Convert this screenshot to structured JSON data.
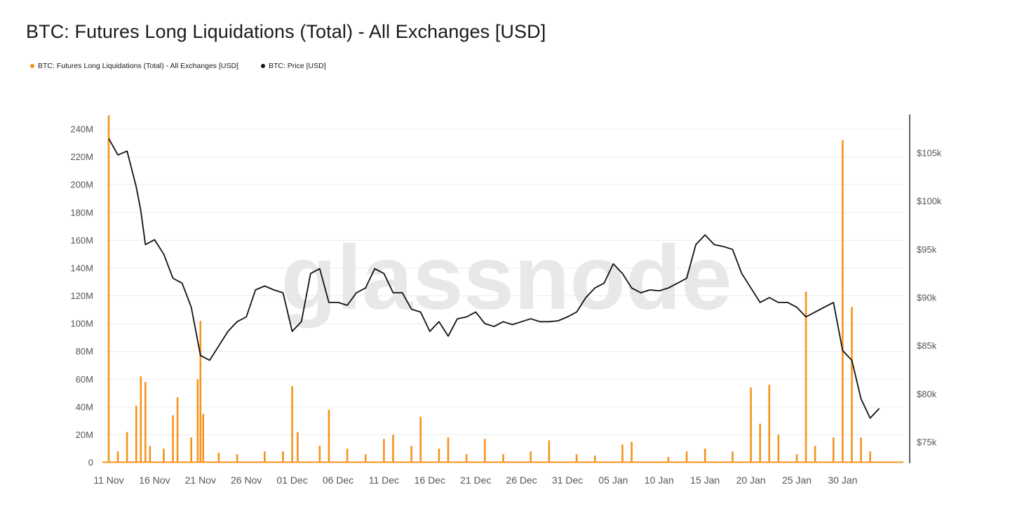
{
  "title": "BTC: Futures Long Liquidations (Total) - All Exchanges [USD]",
  "legend": [
    {
      "label": "BTC: Futures Long Liquidations (Total) - All Exchanges [USD]",
      "color": "#f7931a"
    },
    {
      "label": "BTC: Price [USD]",
      "color": "#111111"
    }
  ],
  "watermark": "glassnode",
  "chart_data": {
    "type": "bar+line",
    "x_ticks": [
      "11 Nov",
      "16 Nov",
      "21 Nov",
      "26 Nov",
      "01 Dec",
      "06 Dec",
      "11 Dec",
      "16 Dec",
      "21 Dec",
      "26 Dec",
      "31 Dec",
      "05 Jan",
      "10 Jan",
      "15 Jan",
      "20 Jan",
      "25 Jan",
      "30 Jan"
    ],
    "x_range": [
      "2025-11-11",
      "2026-02-03"
    ],
    "left_axis": {
      "ticks": [
        "0",
        "20M",
        "40M",
        "60M",
        "80M",
        "100M",
        "120M",
        "140M",
        "160M",
        "180M",
        "200M",
        "220M",
        "240M"
      ],
      "min": 0,
      "max": 240000000
    },
    "right_axis": {
      "ticks": [
        "$75k",
        "$80k",
        "$85k",
        "$90k",
        "$95k",
        "$100k",
        "$105k"
      ],
      "min": 73000,
      "max": 108000
    },
    "liquidations": {
      "name": "BTC: Futures Long Liquidations (Total) - All Exchanges [USD]",
      "color": "#f7931a",
      "points": [
        [
          "2025-11-11",
          250000000
        ],
        [
          "2025-11-12",
          8000000
        ],
        [
          "2025-11-13",
          22000000
        ],
        [
          "2025-11-14",
          41000000
        ],
        [
          "2025-11-14.5",
          62000000
        ],
        [
          "2025-11-15",
          58000000
        ],
        [
          "2025-11-15.5",
          12000000
        ],
        [
          "2025-11-17",
          10000000
        ],
        [
          "2025-11-18",
          34000000
        ],
        [
          "2025-11-18.5",
          47000000
        ],
        [
          "2025-11-20",
          18000000
        ],
        [
          "2025-11-20.7",
          60000000
        ],
        [
          "2025-11-21",
          102000000
        ],
        [
          "2025-11-21.3",
          35000000
        ],
        [
          "2025-11-23",
          7000000
        ],
        [
          "2025-11-25",
          6000000
        ],
        [
          "2025-11-28",
          8000000
        ],
        [
          "2025-11-30",
          8000000
        ],
        [
          "2025-12-01",
          55000000
        ],
        [
          "2025-12-01.6",
          22000000
        ],
        [
          "2025-12-04",
          12000000
        ],
        [
          "2025-12-05",
          38000000
        ],
        [
          "2025-12-07",
          10000000
        ],
        [
          "2025-12-09",
          6000000
        ],
        [
          "2025-12-11",
          17000000
        ],
        [
          "2025-12-12",
          20000000
        ],
        [
          "2025-12-14",
          12000000
        ],
        [
          "2025-12-15",
          33000000
        ],
        [
          "2025-12-17",
          10000000
        ],
        [
          "2025-12-18",
          18000000
        ],
        [
          "2025-12-20",
          6000000
        ],
        [
          "2025-12-22",
          17000000
        ],
        [
          "2025-12-24",
          6000000
        ],
        [
          "2025-12-27",
          8000000
        ],
        [
          "2025-12-29",
          16000000
        ],
        [
          "2026-01-01",
          6000000
        ],
        [
          "2026-01-03",
          5000000
        ],
        [
          "2026-01-06",
          13000000
        ],
        [
          "2026-01-07",
          15000000
        ],
        [
          "2026-01-11",
          4000000
        ],
        [
          "2026-01-13",
          8000000
        ],
        [
          "2026-01-15",
          10000000
        ],
        [
          "2026-01-18",
          8000000
        ],
        [
          "2026-01-20",
          54000000
        ],
        [
          "2026-01-21",
          28000000
        ],
        [
          "2026-01-22",
          56000000
        ],
        [
          "2026-01-23",
          20000000
        ],
        [
          "2026-01-25",
          6000000
        ],
        [
          "2026-01-26",
          123000000
        ],
        [
          "2026-01-27",
          12000000
        ],
        [
          "2026-01-29",
          18000000
        ],
        [
          "2026-01-30",
          232000000
        ],
        [
          "2026-01-31",
          112000000
        ],
        [
          "2026-02-01",
          18000000
        ],
        [
          "2026-02-02",
          8000000
        ]
      ]
    },
    "price": {
      "name": "BTC: Price [USD]",
      "color": "#111111",
      "points": [
        [
          "2025-11-11",
          106500
        ],
        [
          "2025-11-12",
          104800
        ],
        [
          "2025-11-13",
          105200
        ],
        [
          "2025-11-14",
          101500
        ],
        [
          "2025-11-14.5",
          99000
        ],
        [
          "2025-11-15",
          95500
        ],
        [
          "2025-11-16",
          96000
        ],
        [
          "2025-11-17",
          94500
        ],
        [
          "2025-11-18",
          92000
        ],
        [
          "2025-11-19",
          91500
        ],
        [
          "2025-11-20",
          89000
        ],
        [
          "2025-11-21",
          84000
        ],
        [
          "2025-11-22",
          83500
        ],
        [
          "2025-11-23",
          85000
        ],
        [
          "2025-11-24",
          86500
        ],
        [
          "2025-11-25",
          87500
        ],
        [
          "2025-11-26",
          88000
        ],
        [
          "2025-11-27",
          90800
        ],
        [
          "2025-11-28",
          91200
        ],
        [
          "2025-11-29",
          90800
        ],
        [
          "2025-11-30",
          90500
        ],
        [
          "2025-12-01",
          86500
        ],
        [
          "2025-12-02",
          87500
        ],
        [
          "2025-12-03",
          92500
        ],
        [
          "2025-12-04",
          93000
        ],
        [
          "2025-12-05",
          89500
        ],
        [
          "2025-12-06",
          89500
        ],
        [
          "2025-12-07",
          89200
        ],
        [
          "2025-12-08",
          90500
        ],
        [
          "2025-12-09",
          91000
        ],
        [
          "2025-12-10",
          93000
        ],
        [
          "2025-12-11",
          92500
        ],
        [
          "2025-12-12",
          90500
        ],
        [
          "2025-12-13",
          90500
        ],
        [
          "2025-12-14",
          88800
        ],
        [
          "2025-12-15",
          88500
        ],
        [
          "2025-12-16",
          86500
        ],
        [
          "2025-12-17",
          87500
        ],
        [
          "2025-12-18",
          86000
        ],
        [
          "2025-12-19",
          87800
        ],
        [
          "2025-12-20",
          88000
        ],
        [
          "2025-12-21",
          88500
        ],
        [
          "2025-12-22",
          87300
        ],
        [
          "2025-12-23",
          87000
        ],
        [
          "2025-12-24",
          87500
        ],
        [
          "2025-12-25",
          87200
        ],
        [
          "2025-12-26",
          87500
        ],
        [
          "2025-12-27",
          87800
        ],
        [
          "2025-12-28",
          87500
        ],
        [
          "2025-12-29",
          87500
        ],
        [
          "2025-12-30",
          87600
        ],
        [
          "2025-12-31",
          88000
        ],
        [
          "2026-01-01",
          88500
        ],
        [
          "2026-01-02",
          90000
        ],
        [
          "2026-01-03",
          91000
        ],
        [
          "2026-01-04",
          91500
        ],
        [
          "2026-01-05",
          93500
        ],
        [
          "2026-01-06",
          92500
        ],
        [
          "2026-01-07",
          91000
        ],
        [
          "2026-01-08",
          90500
        ],
        [
          "2026-01-09",
          90800
        ],
        [
          "2026-01-10",
          90700
        ],
        [
          "2026-01-11",
          91000
        ],
        [
          "2026-01-12",
          91500
        ],
        [
          "2026-01-13",
          92000
        ],
        [
          "2026-01-14",
          95500
        ],
        [
          "2026-01-15",
          96500
        ],
        [
          "2026-01-16",
          95500
        ],
        [
          "2026-01-17",
          95300
        ],
        [
          "2026-01-18",
          95000
        ],
        [
          "2026-01-19",
          92500
        ],
        [
          "2026-01-20",
          91000
        ],
        [
          "2026-01-21",
          89500
        ],
        [
          "2026-01-22",
          90000
        ],
        [
          "2026-01-23",
          89500
        ],
        [
          "2026-01-24",
          89500
        ],
        [
          "2026-01-25",
          89000
        ],
        [
          "2026-01-26",
          88000
        ],
        [
          "2026-01-27",
          88500
        ],
        [
          "2026-01-28",
          89000
        ],
        [
          "2026-01-29",
          89500
        ],
        [
          "2026-01-30",
          84500
        ],
        [
          "2026-01-31",
          83500
        ],
        [
          "2026-02-01",
          79500
        ],
        [
          "2026-02-02",
          77500
        ],
        [
          "2026-02-03",
          78500
        ]
      ]
    }
  }
}
